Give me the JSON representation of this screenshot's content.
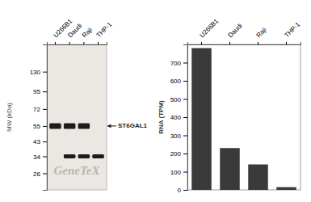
{
  "chart_data": [
    {
      "type": "blot",
      "categories": [
        "U266B1",
        "Daudi",
        "Raji",
        "THP-1"
      ],
      "ylabel": "MW (kDa)",
      "log": "y",
      "ylim": [
        20,
        200
      ],
      "yticks": [
        130,
        95,
        72,
        55,
        43,
        34,
        26
      ],
      "series": [
        {
          "name": "ST6GAL1",
          "values": [
            55,
            55,
            55,
            null
          ]
        },
        {
          "values": [
            null,
            34,
            34,
            34
          ]
        }
      ],
      "annotations": [
        "GeneTeX"
      ]
    },
    {
      "type": "bar",
      "categories": [
        "U266B1",
        "Daudi",
        "Raji",
        "THP-1"
      ],
      "values": [
        780,
        230,
        140,
        15
      ],
      "color": "#3a3a3a",
      "ylabel": "RNA (TPM)",
      "ylim": [
        0,
        800
      ],
      "yticks": [
        0,
        100,
        200,
        300,
        400,
        500,
        600,
        700
      ]
    }
  ]
}
